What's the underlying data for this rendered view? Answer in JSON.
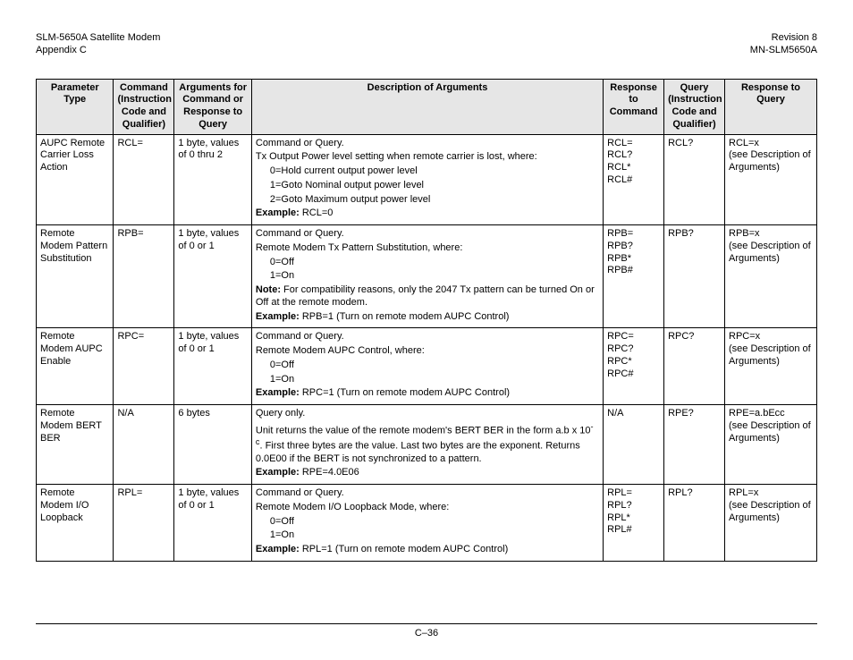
{
  "header": {
    "left_line1": "SLM-5650A Satellite Modem",
    "left_line2": "Appendix C",
    "right_line1": "Revision 8",
    "right_line2": "MN-SLM5650A"
  },
  "columns": {
    "c1": "Parameter Type",
    "c2": "Command (Instruction Code and Qualifier)",
    "c3": "Arguments for Command or Response to Query",
    "c4": "Description of Arguments",
    "c5": "Response to Command",
    "c6": "Query (Instruction Code and Qualifier)",
    "c7": "Response to Query"
  },
  "rows": [
    {
      "param": "AUPC Remote Carrier Loss Action",
      "cmd": "RCL=",
      "args": "1 byte, values of 0 thru 2",
      "desc_intro": "Command or Query.",
      "desc_main": "Tx Output Power level setting when remote carrier is lost, where:",
      "opts": [
        "0=Hold current output power level",
        "1=Goto Nominal output power level",
        "2=Goto Maximum output power level"
      ],
      "note": "",
      "example_label": "Example:",
      "example_val": " RCL=0",
      "resp_cmd": [
        "RCL=",
        "RCL?",
        "RCL*",
        "RCL#"
      ],
      "query": "RCL?",
      "resp_query_line1": "RCL=x",
      "resp_query_line2": "(see Description of Arguments)"
    },
    {
      "param": "Remote Modem Pattern Substitution",
      "cmd": "RPB=",
      "args": "1 byte, values of 0 or 1",
      "desc_intro": "Command or Query.",
      "desc_main": "Remote Modem Tx Pattern Substitution, where:",
      "opts": [
        "0=Off",
        "1=On"
      ],
      "note_label": "Note:",
      "note": "  For compatibility reasons, only the 2047 Tx pattern can be turned On or Off at the remote modem.",
      "example_label": "Example:",
      "example_val": " RPB=1 (Turn on remote modem AUPC Control)",
      "resp_cmd": [
        "RPB=",
        "RPB?",
        "RPB*",
        "RPB#"
      ],
      "query": "RPB?",
      "resp_query_line1": "RPB=x",
      "resp_query_line2": "(see Description of Arguments)"
    },
    {
      "param": "Remote Modem AUPC Enable",
      "cmd": "RPC=",
      "args": "1 byte, values of 0 or 1",
      "desc_intro": "Command or Query.",
      "desc_main": "Remote Modem AUPC Control, where:",
      "opts": [
        "0=Off",
        "1=On"
      ],
      "note": "",
      "example_label": "Example:",
      "example_val": " RPC=1 (Turn on remote modem AUPC Control)",
      "resp_cmd": [
        "RPC=",
        "RPC?",
        "RPC*",
        "RPC#"
      ],
      "query": "RPC?",
      "resp_query_line1": "RPC=x",
      "resp_query_line2": "(see Description of Arguments)"
    },
    {
      "param": "Remote Modem BERT BER",
      "cmd": "N/A",
      "args": "6 bytes",
      "desc_intro": "Query only.",
      "desc_main_html": "Unit returns the value of the remote modem's BERT BER in the form a.b x 10<sup>-c</sup>. First three bytes are the value. Last two bytes are the exponent. Returns 0.0E00 if the BERT is not synchronized to a pattern.",
      "opts": [],
      "note": "",
      "example_label": "Example:",
      "example_val": " RPE=4.0E06",
      "resp_cmd": [
        "N/A"
      ],
      "query": "RPE?",
      "resp_query_line1": "RPE=a.bEcc",
      "resp_query_line2": "(see Description of Arguments)"
    },
    {
      "param": "Remote Modem I/O Loopback",
      "cmd": "RPL=",
      "args": "1 byte, values of 0 or 1",
      "desc_intro": "Command or Query.",
      "desc_main": "Remote Modem I/O Loopback Mode, where:",
      "opts": [
        "0=Off",
        "1=On"
      ],
      "note": "",
      "example_label": "Example:",
      "example_val": " RPL=1 (Turn on remote modem AUPC Control)",
      "resp_cmd": [
        "RPL=",
        "RPL?",
        "RPL*",
        "RPL#"
      ],
      "query": "RPL?",
      "resp_query_line1": "RPL=x",
      "resp_query_line2": "(see Description of Arguments)"
    }
  ],
  "footer": "C–36"
}
